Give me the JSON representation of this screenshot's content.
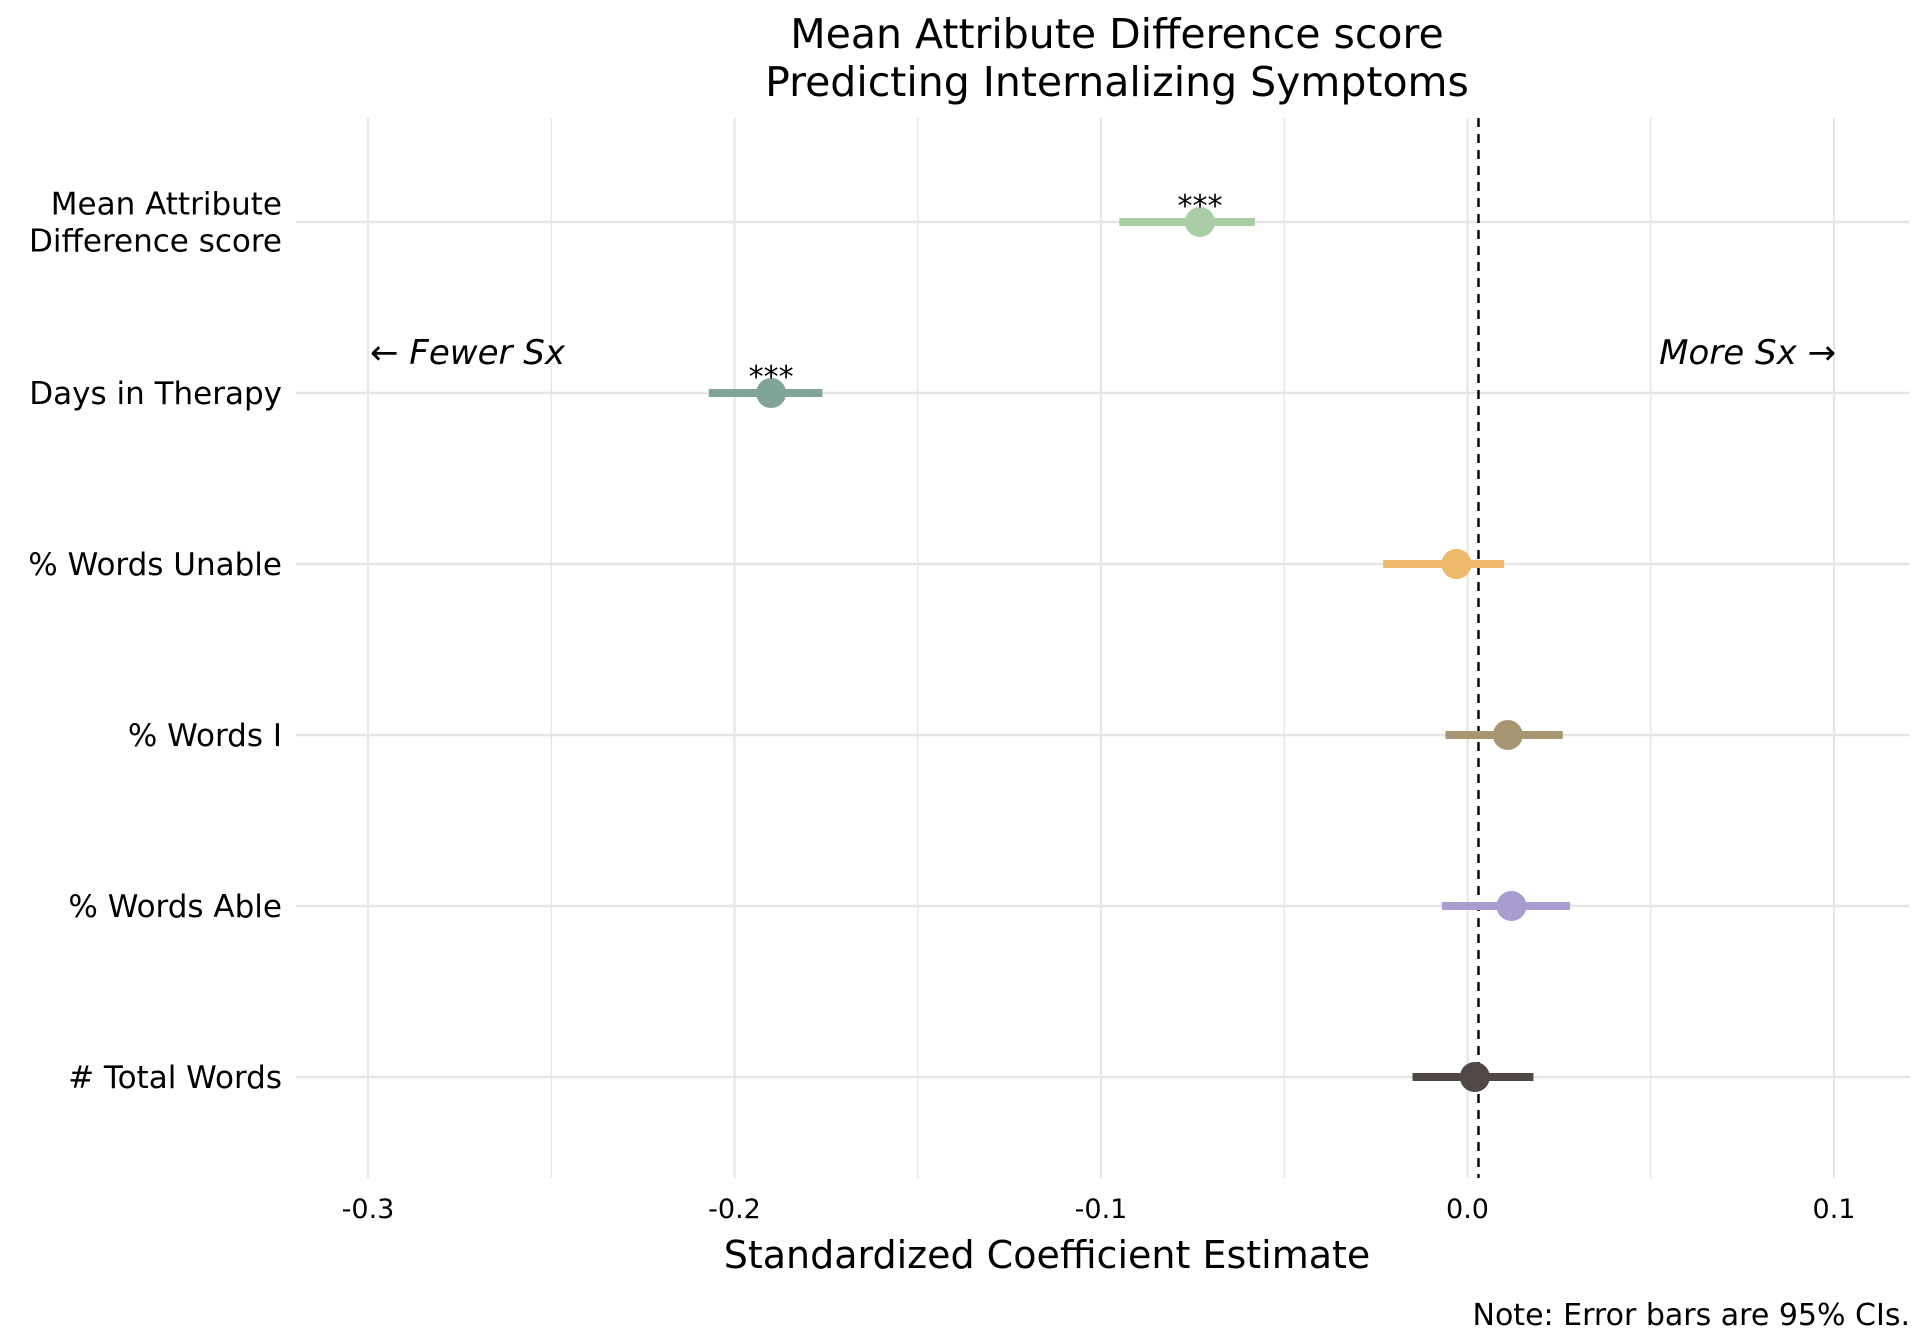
{
  "chart_data": {
    "type": "scatter",
    "title": [
      "Mean Attribute Difference score",
      "Predicting Internalizing Symptoms"
    ],
    "xlabel": "Standardized Coefficient Estimate",
    "ylabel": "",
    "xlim": [
      -0.335,
      0.12
    ],
    "x_ticks": [
      -0.3,
      -0.2,
      -0.1,
      0.0,
      0.1
    ],
    "x_tick_labels": [
      "-0.3",
      "-0.2",
      "-0.1",
      "0.0",
      "0.1"
    ],
    "reference_line_x": 0.003,
    "grid": true,
    "note": "Note: Error bars are 95% CIs.",
    "annotations": {
      "left": "← Fewer Sx",
      "right": "More Sx →"
    },
    "points": [
      {
        "label": [
          "Mean Attribute",
          "Difference score"
        ],
        "estimate": -0.073,
        "ci_low": -0.095,
        "ci_high": -0.058,
        "sig": "***",
        "color": "#a9cea5"
      },
      {
        "label": [
          "Days in Therapy"
        ],
        "estimate": -0.19,
        "ci_low": -0.207,
        "ci_high": -0.176,
        "sig": "***",
        "color": "#80a596"
      },
      {
        "label": [
          "% Words Unable"
        ],
        "estimate": -0.003,
        "ci_low": -0.023,
        "ci_high": 0.01,
        "sig": "",
        "color": "#edb86a"
      },
      {
        "label": [
          "% Words I"
        ],
        "estimate": 0.011,
        "ci_low": -0.006,
        "ci_high": 0.026,
        "sig": "",
        "color": "#a69671"
      },
      {
        "label": [
          "% Words Able"
        ],
        "estimate": 0.012,
        "ci_low": -0.007,
        "ci_high": 0.028,
        "sig": "",
        "color": "#a89cd0"
      },
      {
        "label": [
          "# Total Words"
        ],
        "estimate": 0.002,
        "ci_low": -0.015,
        "ci_high": 0.018,
        "sig": "",
        "color": "#4f4846"
      }
    ]
  }
}
